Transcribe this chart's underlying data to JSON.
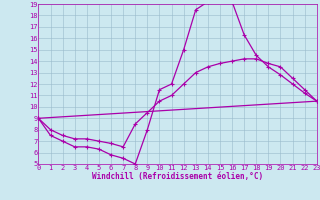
{
  "xlabel": "Windchill (Refroidissement éolien,°C)",
  "bg_color": "#cce8f0",
  "grid_color": "#99bbcc",
  "line_color": "#aa00aa",
  "xlim": [
    0,
    23
  ],
  "ylim": [
    5,
    19
  ],
  "xticks": [
    0,
    1,
    2,
    3,
    4,
    5,
    6,
    7,
    8,
    9,
    10,
    11,
    12,
    13,
    14,
    15,
    16,
    17,
    18,
    19,
    20,
    21,
    22,
    23
  ],
  "yticks": [
    5,
    6,
    7,
    8,
    9,
    10,
    11,
    12,
    13,
    14,
    15,
    16,
    17,
    18,
    19
  ],
  "line1_x": [
    0,
    1,
    2,
    3,
    4,
    5,
    6,
    7,
    8,
    9,
    10,
    11,
    12,
    13,
    14,
    15,
    16,
    17,
    18,
    19,
    20,
    21,
    22,
    23
  ],
  "line1_y": [
    9.0,
    7.5,
    7.0,
    6.5,
    6.5,
    6.3,
    5.8,
    5.5,
    5.0,
    8.0,
    11.5,
    12.0,
    15.0,
    18.5,
    19.2,
    19.3,
    19.2,
    16.3,
    14.5,
    13.5,
    12.8,
    12.0,
    11.2,
    10.5
  ],
  "line2_x": [
    0,
    23
  ],
  "line2_y": [
    9.0,
    10.5
  ],
  "line3_x": [
    0,
    1,
    2,
    3,
    4,
    5,
    6,
    7,
    8,
    9,
    10,
    11,
    12,
    13,
    14,
    15,
    16,
    17,
    18,
    19,
    20,
    21,
    22,
    23
  ],
  "line3_y": [
    9.0,
    8.0,
    7.5,
    7.2,
    7.2,
    7.0,
    6.8,
    6.5,
    8.5,
    9.5,
    10.5,
    11.0,
    12.0,
    13.0,
    13.5,
    13.8,
    14.0,
    14.2,
    14.2,
    13.8,
    13.5,
    12.5,
    11.5,
    10.5
  ],
  "xlabel_fontsize": 5.5,
  "tick_fontsize": 5.0,
  "linewidth": 0.9,
  "markersize": 3.5
}
